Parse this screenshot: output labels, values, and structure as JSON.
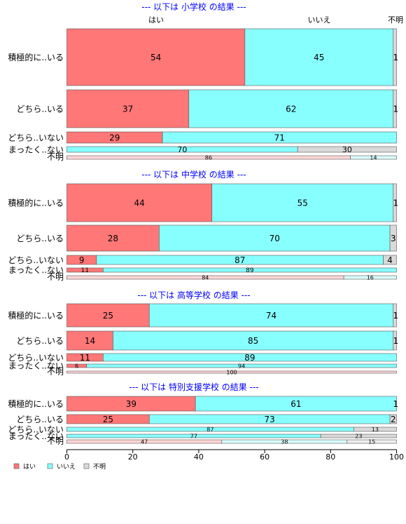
{
  "colors": {
    "yes": "#ff7777",
    "no": "#88ffff",
    "unknown": "#d9d9d9",
    "unknown_row": {
      "yes": "#ffd6d6",
      "no": "#d9ffff",
      "unknown": "#eeeeee"
    }
  },
  "chart_data": {
    "type": "bar",
    "orientation": "horizontal",
    "stacked": true,
    "xlim": [
      0,
      100
    ],
    "x_ticks": [
      "0",
      "20",
      "40",
      "60",
      "80",
      "100"
    ],
    "column_headers": [
      "はい",
      "いいえ",
      "不明"
    ],
    "legend": [
      "はい",
      "いいえ",
      "不明"
    ],
    "legend_position": "bottom",
    "blocks": [
      {
        "title": "--- 以下は 小学校 の結果 ---",
        "rows": [
          {
            "label": "積極的に..いる",
            "values": [
              54,
              45,
              1
            ]
          },
          {
            "label": "どちら..いる",
            "values": [
              37,
              62,
              1
            ]
          },
          {
            "label": "どちら..いない",
            "values": [
              29,
              71,
              0
            ]
          },
          {
            "label": "まったく..ない",
            "values": [
              0,
              70,
              30
            ]
          },
          {
            "label": "不明",
            "values": [
              86,
              14,
              0
            ]
          }
        ]
      },
      {
        "title": "--- 以下は 中学校 の結果 ---",
        "rows": [
          {
            "label": "積極的に..いる",
            "values": [
              44,
              55,
              1
            ]
          },
          {
            "label": "どちら..いる",
            "values": [
              28,
              70,
              3
            ]
          },
          {
            "label": "どちら..いない",
            "values": [
              9,
              87,
              4
            ]
          },
          {
            "label": "まったく..ない",
            "values": [
              11,
              89,
              0
            ]
          },
          {
            "label": "不明",
            "values": [
              84,
              16,
              0
            ]
          }
        ]
      },
      {
        "title": "--- 以下は 高等学校 の結果 ---",
        "rows": [
          {
            "label": "積極的に..いる",
            "values": [
              25,
              74,
              1
            ]
          },
          {
            "label": "どちら..いる",
            "values": [
              14,
              85,
              1
            ]
          },
          {
            "label": "どちら..いない",
            "values": [
              11,
              89,
              0
            ]
          },
          {
            "label": "まったく..ない",
            "values": [
              6,
              94,
              0
            ]
          },
          {
            "label": "不明",
            "values": [
              100,
              0,
              0
            ]
          }
        ]
      },
      {
        "title": "--- 以下は 特別支援学校 の結果 ---",
        "rows": [
          {
            "label": "積極的に..いる",
            "values": [
              39,
              61,
              1
            ]
          },
          {
            "label": "どちら..いる",
            "values": [
              25,
              73,
              2
            ]
          },
          {
            "label": "どちら..いない",
            "values": [
              0,
              87,
              13
            ]
          },
          {
            "label": "まったく..ない",
            "values": [
              0,
              77,
              23
            ]
          },
          {
            "label": "不明",
            "values": [
              47,
              38,
              15
            ]
          }
        ]
      }
    ]
  }
}
